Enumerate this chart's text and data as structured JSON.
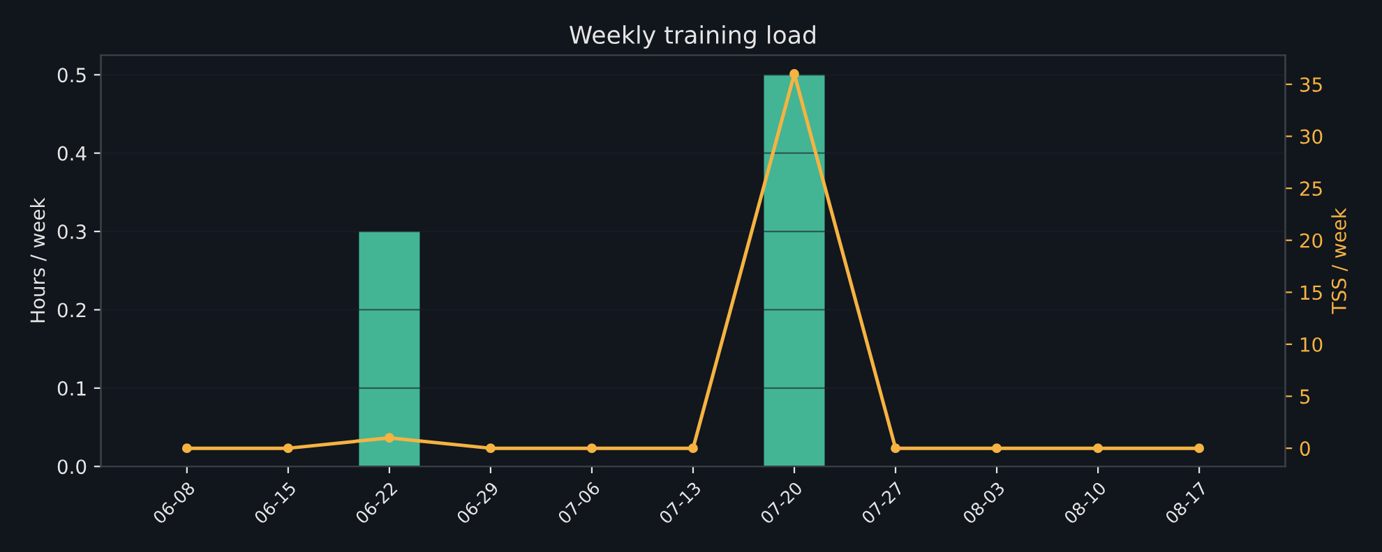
{
  "chart_data": {
    "type": "bar",
    "title": "Weekly training load",
    "ylabel": "Hours / week",
    "y2label": "TSS / week",
    "categories": [
      "06-08",
      "06-15",
      "06-22",
      "06-29",
      "07-06",
      "07-13",
      "07-20",
      "07-27",
      "08-03",
      "08-10",
      "08-17"
    ],
    "series": [
      {
        "color": "#43b594",
        "values": [
          0,
          0,
          0.3,
          0,
          0,
          0,
          0.5,
          0,
          0,
          0,
          0
        ]
      },
      {
        "type": "line",
        "axis": "y2",
        "color": "#f5b342",
        "marker": "circle",
        "values": [
          0,
          0,
          1,
          0,
          0,
          0,
          36,
          0,
          0,
          0,
          0
        ]
      }
    ],
    "ylim": [
      0,
      0.525
    ],
    "yticks": [
      {
        "value": 0,
        "label": "0.0"
      },
      0.1,
      0.2,
      0.3,
      0.4,
      0.5
    ],
    "y2lim": [
      -1.75,
      37.8
    ],
    "y2ticks": [
      0,
      5,
      10,
      15,
      20,
      25,
      30,
      35
    ],
    "grid": "y",
    "legend": false
  }
}
